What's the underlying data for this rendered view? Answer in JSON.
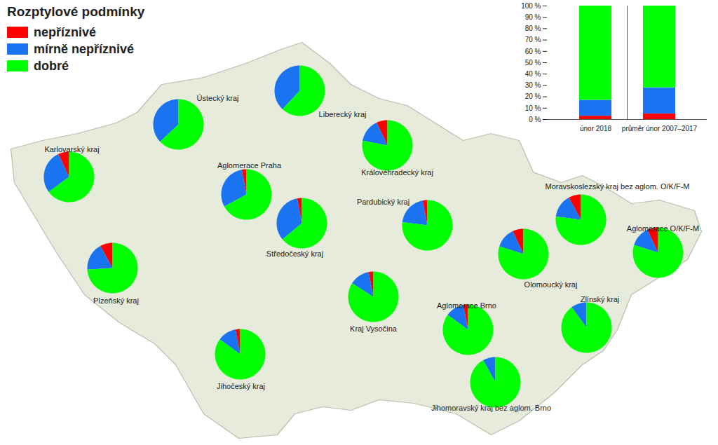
{
  "chart_data": [
    {
      "type": "pie",
      "title": "Rozptylové podmínky",
      "legend": "top-left",
      "categories": [
        "Ústecký kraj",
        "Liberecký kraj",
        "Karlovarský kraj",
        "Královéhradecký kraj",
        "Aglomerace Praha",
        "Středočeský kraj",
        "Pardubický kraj",
        "Moravskoslezský kraj bez aglom. O/K/F-M",
        "Aglomerace O/K/F-M",
        "Olomoucký kraj",
        "Plzeňský kraj",
        "Kraj Vysočina",
        "Jihočeský kraj",
        "Aglomerace Brno",
        "Zlínský kraj",
        "Jihomoravský kraj bez aglom. Brno"
      ],
      "series": [
        {
          "name": "nepříznivé",
          "color": "#ff0000",
          "values": [
            0,
            0,
            7,
            7,
            3,
            3,
            3,
            8,
            7,
            7,
            8,
            3,
            3,
            3,
            0,
            0
          ]
        },
        {
          "name": "mírně nepříznivé",
          "color": "#1a73f0",
          "values": [
            37,
            38,
            28,
            15,
            30,
            33,
            20,
            15,
            13,
            13,
            18,
            13,
            12,
            12,
            10,
            8
          ]
        },
        {
          "name": "dobré",
          "color": "#00ff00",
          "values": [
            63,
            62,
            65,
            78,
            67,
            64,
            77,
            77,
            80,
            80,
            74,
            84,
            85,
            85,
            90,
            92
          ]
        }
      ]
    },
    {
      "type": "bar",
      "stacked": true,
      "categories": [
        "únor 2018",
        "průměr únor 2007–2017"
      ],
      "series": [
        {
          "name": "nepříznivé",
          "color": "#ff0000",
          "values": [
            3,
            5
          ]
        },
        {
          "name": "mírně nepříznivé",
          "color": "#1a73f0",
          "values": [
            14,
            23
          ]
        },
        {
          "name": "dobré",
          "color": "#00ff00",
          "values": [
            83,
            72
          ]
        }
      ],
      "ylim": [
        0,
        100
      ],
      "yticks": [
        {
          "value": 0,
          "label": "0 %"
        },
        {
          "value": 10,
          "label": "10 %"
        },
        {
          "value": 20,
          "label": "20 %"
        },
        {
          "value": 30,
          "label": "30 %"
        },
        {
          "value": 40,
          "label": "40 %"
        },
        {
          "value": 50,
          "label": "50 %"
        },
        {
          "value": 60,
          "label": "60 %"
        },
        {
          "value": 70,
          "label": "70 %"
        },
        {
          "value": 80,
          "label": "80 %"
        },
        {
          "value": 90,
          "label": "90 %"
        },
        {
          "value": 100,
          "label": "100 %"
        }
      ]
    }
  ]
}
